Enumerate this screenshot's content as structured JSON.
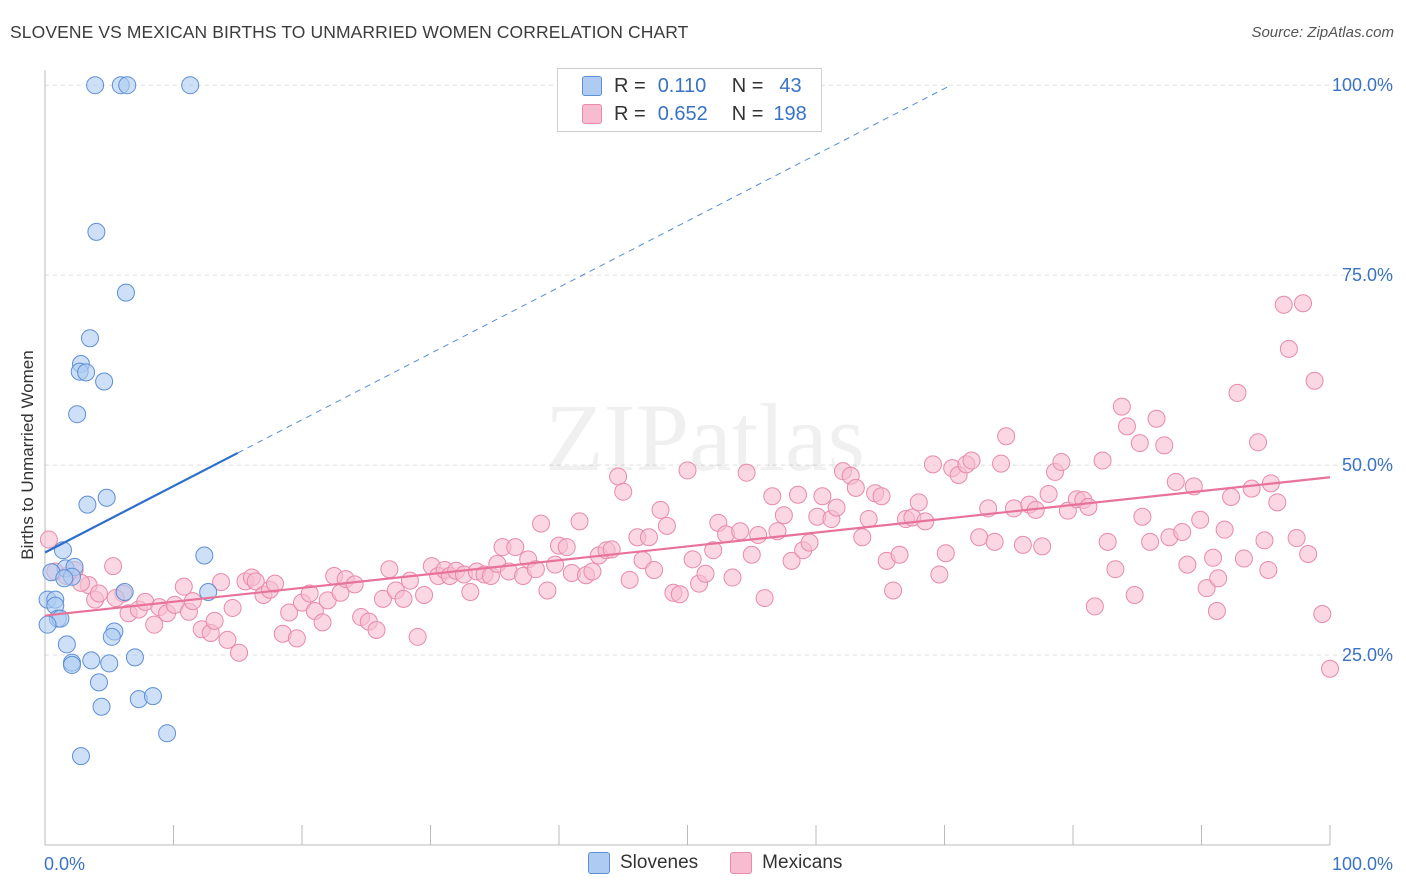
{
  "title": "SLOVENE VS MEXICAN BIRTHS TO UNMARRIED WOMEN CORRELATION CHART",
  "source": "Source: ZipAtlas.com",
  "watermark": "ZIPatlas",
  "legend": {
    "rows": [
      {
        "r_label": "R =",
        "r_value": "0.110",
        "n_label": "N =",
        "n_value": "43"
      },
      {
        "r_label": "R =",
        "r_value": "0.652",
        "n_label": "N =",
        "n_value": "198"
      }
    ]
  },
  "bottom_legend": [
    "Slovenes",
    "Mexicans"
  ],
  "colors": {
    "slovenes_fill": "#aecbf2",
    "slovenes_stroke": "#5e8fd6",
    "slovenes_line": "#2e6fcc",
    "mexicans_fill": "#f7bcd0",
    "mexicans_stroke": "#e98aa8",
    "mexicans_line": "#e8739a",
    "tick_label": "#3a73c4",
    "grid": "#dddddd"
  },
  "chart_data": {
    "type": "scatter",
    "title": "SLOVENE VS MEXICAN BIRTHS TO UNMARRIED WOMEN CORRELATION CHART",
    "xlabel": "",
    "ylabel": "Births to Unmarried Women",
    "xlim": [
      0,
      100
    ],
    "ylim": [
      0,
      102
    ],
    "x_tick_labels": [
      "0.0%",
      "100.0%"
    ],
    "y_ticks": [
      25,
      50,
      75,
      100
    ],
    "y_tick_labels": [
      "25.0%",
      "50.0%",
      "75.0%",
      "100.0%"
    ],
    "grid": true,
    "legend_position": "top-center",
    "series": [
      {
        "name": "Slovenes",
        "r": 0.11,
        "n": 43,
        "trend": {
          "x": [
            0,
            15
          ],
          "y": [
            38.5,
            51.6
          ]
        },
        "trend_extension": {
          "x": [
            15,
            70.5
          ],
          "y": [
            51.6,
            100
          ]
        },
        "points": [
          [
            3.9,
            100
          ],
          [
            5.9,
            100
          ],
          [
            6.4,
            100
          ],
          [
            11.3,
            100
          ],
          [
            4,
            80.7
          ],
          [
            6.3,
            72.7
          ],
          [
            3.5,
            66.7
          ],
          [
            2.8,
            63.3
          ],
          [
            2.7,
            62.3
          ],
          [
            3.2,
            62.2
          ],
          [
            4.6,
            61
          ],
          [
            2.5,
            56.7
          ],
          [
            4.8,
            45.7
          ],
          [
            3.3,
            44.8
          ],
          [
            12.4,
            38.1
          ],
          [
            1.4,
            38.8
          ],
          [
            1.6,
            36.4
          ],
          [
            0.5,
            35.9
          ],
          [
            2.3,
            36.6
          ],
          [
            2.1,
            35.3
          ],
          [
            1.5,
            35.1
          ],
          [
            6.2,
            33.3
          ],
          [
            12.7,
            33.3
          ],
          [
            0.2,
            32.3
          ],
          [
            0.8,
            32.3
          ],
          [
            0.8,
            31.5
          ],
          [
            1,
            29.8
          ],
          [
            1.2,
            29.8
          ],
          [
            0.2,
            29
          ],
          [
            5.4,
            28.1
          ],
          [
            5.2,
            27.4
          ],
          [
            1.7,
            26.4
          ],
          [
            7,
            24.7
          ],
          [
            2.1,
            24
          ],
          [
            2.1,
            23.7
          ],
          [
            3.6,
            24.3
          ],
          [
            5,
            23.9
          ],
          [
            4.2,
            21.4
          ],
          [
            4.4,
            18.2
          ],
          [
            7.3,
            19.2
          ],
          [
            8.4,
            19.6
          ],
          [
            9.5,
            14.7
          ],
          [
            2.8,
            11.7
          ]
        ]
      },
      {
        "name": "Mexicans",
        "r": 0.652,
        "n": 198,
        "trend": {
          "x": [
            0,
            100
          ],
          "y": [
            30.2,
            48.4
          ]
        },
        "points": [
          [
            0.3,
            40.2
          ],
          [
            0.8,
            36
          ],
          [
            2.3,
            36.2
          ],
          [
            1.7,
            35.4
          ],
          [
            3.4,
            34.2
          ],
          [
            3.9,
            32.3
          ],
          [
            4.2,
            33.1
          ],
          [
            5.3,
            36.7
          ],
          [
            2.8,
            34.5
          ],
          [
            6.1,
            33.1
          ],
          [
            5.5,
            32.5
          ],
          [
            6.5,
            30.5
          ],
          [
            7.3,
            31
          ],
          [
            7.8,
            32
          ],
          [
            8.5,
            29
          ],
          [
            8.9,
            31.3
          ],
          [
            9.5,
            30.5
          ],
          [
            10.1,
            31.6
          ],
          [
            10.8,
            34
          ],
          [
            11.2,
            30.7
          ],
          [
            11.5,
            32.1
          ],
          [
            12.2,
            28.4
          ],
          [
            12.9,
            27.9
          ],
          [
            13.2,
            29.5
          ],
          [
            13.7,
            34.6
          ],
          [
            14.2,
            27
          ],
          [
            14.6,
            31.2
          ],
          [
            15.1,
            25.3
          ],
          [
            15.6,
            34.7
          ],
          [
            16.1,
            35.2
          ],
          [
            16.4,
            34.7
          ],
          [
            17,
            32.9
          ],
          [
            17.5,
            33.6
          ],
          [
            17.9,
            34.4
          ],
          [
            18.5,
            27.8
          ],
          [
            19,
            30.6
          ],
          [
            19.6,
            27.2
          ],
          [
            20,
            31.9
          ],
          [
            20.6,
            33.1
          ],
          [
            21,
            30.8
          ],
          [
            21.6,
            29.3
          ],
          [
            22,
            32.2
          ],
          [
            22.5,
            35.4
          ],
          [
            23,
            33.2
          ],
          [
            23.4,
            35
          ],
          [
            24.1,
            34.3
          ],
          [
            24.6,
            30
          ],
          [
            25.2,
            29.4
          ],
          [
            25.8,
            28.3
          ],
          [
            26.3,
            32.4
          ],
          [
            26.8,
            36.3
          ],
          [
            27.3,
            33.5
          ],
          [
            27.9,
            32.4
          ],
          [
            28.4,
            34.8
          ],
          [
            29,
            27.4
          ],
          [
            29.5,
            32.9
          ],
          [
            30.1,
            36.7
          ],
          [
            30.6,
            35.4
          ],
          [
            31.1,
            36.2
          ],
          [
            31.5,
            35.4
          ],
          [
            32,
            36.1
          ],
          [
            32.6,
            35.6
          ],
          [
            33.1,
            33.3
          ],
          [
            33.6,
            36
          ],
          [
            34.2,
            35.6
          ],
          [
            34.7,
            35.4
          ],
          [
            35.2,
            37
          ],
          [
            35.6,
            39.2
          ],
          [
            36.1,
            36
          ],
          [
            36.6,
            39.2
          ],
          [
            37.2,
            35.4
          ],
          [
            37.6,
            37.6
          ],
          [
            38.2,
            36.3
          ],
          [
            38.6,
            42.3
          ],
          [
            39.1,
            33.5
          ],
          [
            39.7,
            36.9
          ],
          [
            40,
            39.4
          ],
          [
            40.6,
            39.2
          ],
          [
            41,
            35.8
          ],
          [
            41.6,
            42.6
          ],
          [
            42.1,
            35.5
          ],
          [
            42.6,
            36
          ],
          [
            43.1,
            38.1
          ],
          [
            43.7,
            38.8
          ],
          [
            44.1,
            38.9
          ],
          [
            44.6,
            48.5
          ],
          [
            45,
            46.5
          ],
          [
            45.5,
            34.9
          ],
          [
            46.1,
            40.5
          ],
          [
            46.5,
            37.5
          ],
          [
            47,
            40.5
          ],
          [
            47.4,
            36.2
          ],
          [
            47.9,
            44.1
          ],
          [
            48.4,
            42
          ],
          [
            48.9,
            33.2
          ],
          [
            49.4,
            33
          ],
          [
            50,
            49.3
          ],
          [
            50.4,
            37.6
          ],
          [
            50.9,
            34.4
          ],
          [
            51.4,
            35.7
          ],
          [
            52,
            38.8
          ],
          [
            52.4,
            42.4
          ],
          [
            53,
            40.9
          ],
          [
            53.5,
            35.2
          ],
          [
            54.1,
            41.3
          ],
          [
            54.6,
            49
          ],
          [
            55,
            38.2
          ],
          [
            55.5,
            40.8
          ],
          [
            56,
            32.5
          ],
          [
            56.6,
            45.9
          ],
          [
            57,
            41.3
          ],
          [
            57.5,
            43.4
          ],
          [
            58.1,
            37.4
          ],
          [
            58.6,
            46.1
          ],
          [
            59,
            38.8
          ],
          [
            59.5,
            39.8
          ],
          [
            60.1,
            43.2
          ],
          [
            60.5,
            45.9
          ],
          [
            61.2,
            42.9
          ],
          [
            61.6,
            44.4
          ],
          [
            62.1,
            49.2
          ],
          [
            62.7,
            48.6
          ],
          [
            63.1,
            47
          ],
          [
            63.6,
            40.5
          ],
          [
            64.1,
            42.9
          ],
          [
            64.6,
            46.3
          ],
          [
            65.1,
            45.9
          ],
          [
            65.5,
            37.4
          ],
          [
            66,
            33.5
          ],
          [
            66.5,
            38.2
          ],
          [
            67,
            42.9
          ],
          [
            67.5,
            43.1
          ],
          [
            68,
            45.1
          ],
          [
            68.5,
            42.6
          ],
          [
            69.1,
            50.1
          ],
          [
            69.6,
            35.6
          ],
          [
            70.1,
            38.4
          ],
          [
            70.6,
            49.6
          ],
          [
            71.1,
            48.7
          ],
          [
            71.7,
            50.1
          ],
          [
            72.1,
            50.6
          ],
          [
            72.7,
            40.5
          ],
          [
            73.4,
            44.3
          ],
          [
            73.9,
            39.9
          ],
          [
            74.4,
            50.2
          ],
          [
            74.8,
            53.8
          ],
          [
            75.4,
            44.3
          ],
          [
            76.1,
            39.5
          ],
          [
            76.6,
            44.8
          ],
          [
            77.1,
            44.1
          ],
          [
            77.6,
            39.3
          ],
          [
            78.1,
            46.2
          ],
          [
            78.6,
            49.1
          ],
          [
            79.1,
            50.4
          ],
          [
            79.6,
            44
          ],
          [
            80.3,
            45.5
          ],
          [
            80.8,
            45.4
          ],
          [
            81.2,
            44.5
          ],
          [
            81.7,
            31.4
          ],
          [
            82.3,
            50.6
          ],
          [
            82.7,
            39.9
          ],
          [
            83.3,
            36.3
          ],
          [
            83.8,
            57.7
          ],
          [
            84.2,
            55.1
          ],
          [
            84.8,
            32.9
          ],
          [
            85.2,
            52.9
          ],
          [
            86,
            39.9
          ],
          [
            86.5,
            56.1
          ],
          [
            87.1,
            52.6
          ],
          [
            87.5,
            40.5
          ],
          [
            88,
            47.8
          ],
          [
            88.5,
            41.2
          ],
          [
            88.9,
            36.9
          ],
          [
            89.4,
            47.2
          ],
          [
            89.9,
            42.8
          ],
          [
            90.4,
            33.8
          ],
          [
            90.9,
            37.8
          ],
          [
            91.3,
            35.1
          ],
          [
            91.8,
            41.5
          ],
          [
            92.3,
            45.8
          ],
          [
            92.8,
            59.5
          ],
          [
            93.3,
            37.7
          ],
          [
            93.9,
            46.9
          ],
          [
            94.4,
            53
          ],
          [
            94.9,
            40.1
          ],
          [
            95.4,
            47.6
          ],
          [
            95.9,
            45.1
          ],
          [
            96.4,
            71.1
          ],
          [
            96.8,
            65.3
          ],
          [
            97.4,
            40.4
          ],
          [
            97.9,
            71.3
          ],
          [
            98.3,
            38.3
          ],
          [
            98.8,
            61.1
          ],
          [
            99.4,
            30.4
          ],
          [
            100,
            23.2
          ],
          [
            95.2,
            36.2
          ],
          [
            91.2,
            30.8
          ],
          [
            85.4,
            43.2
          ]
        ]
      }
    ]
  }
}
